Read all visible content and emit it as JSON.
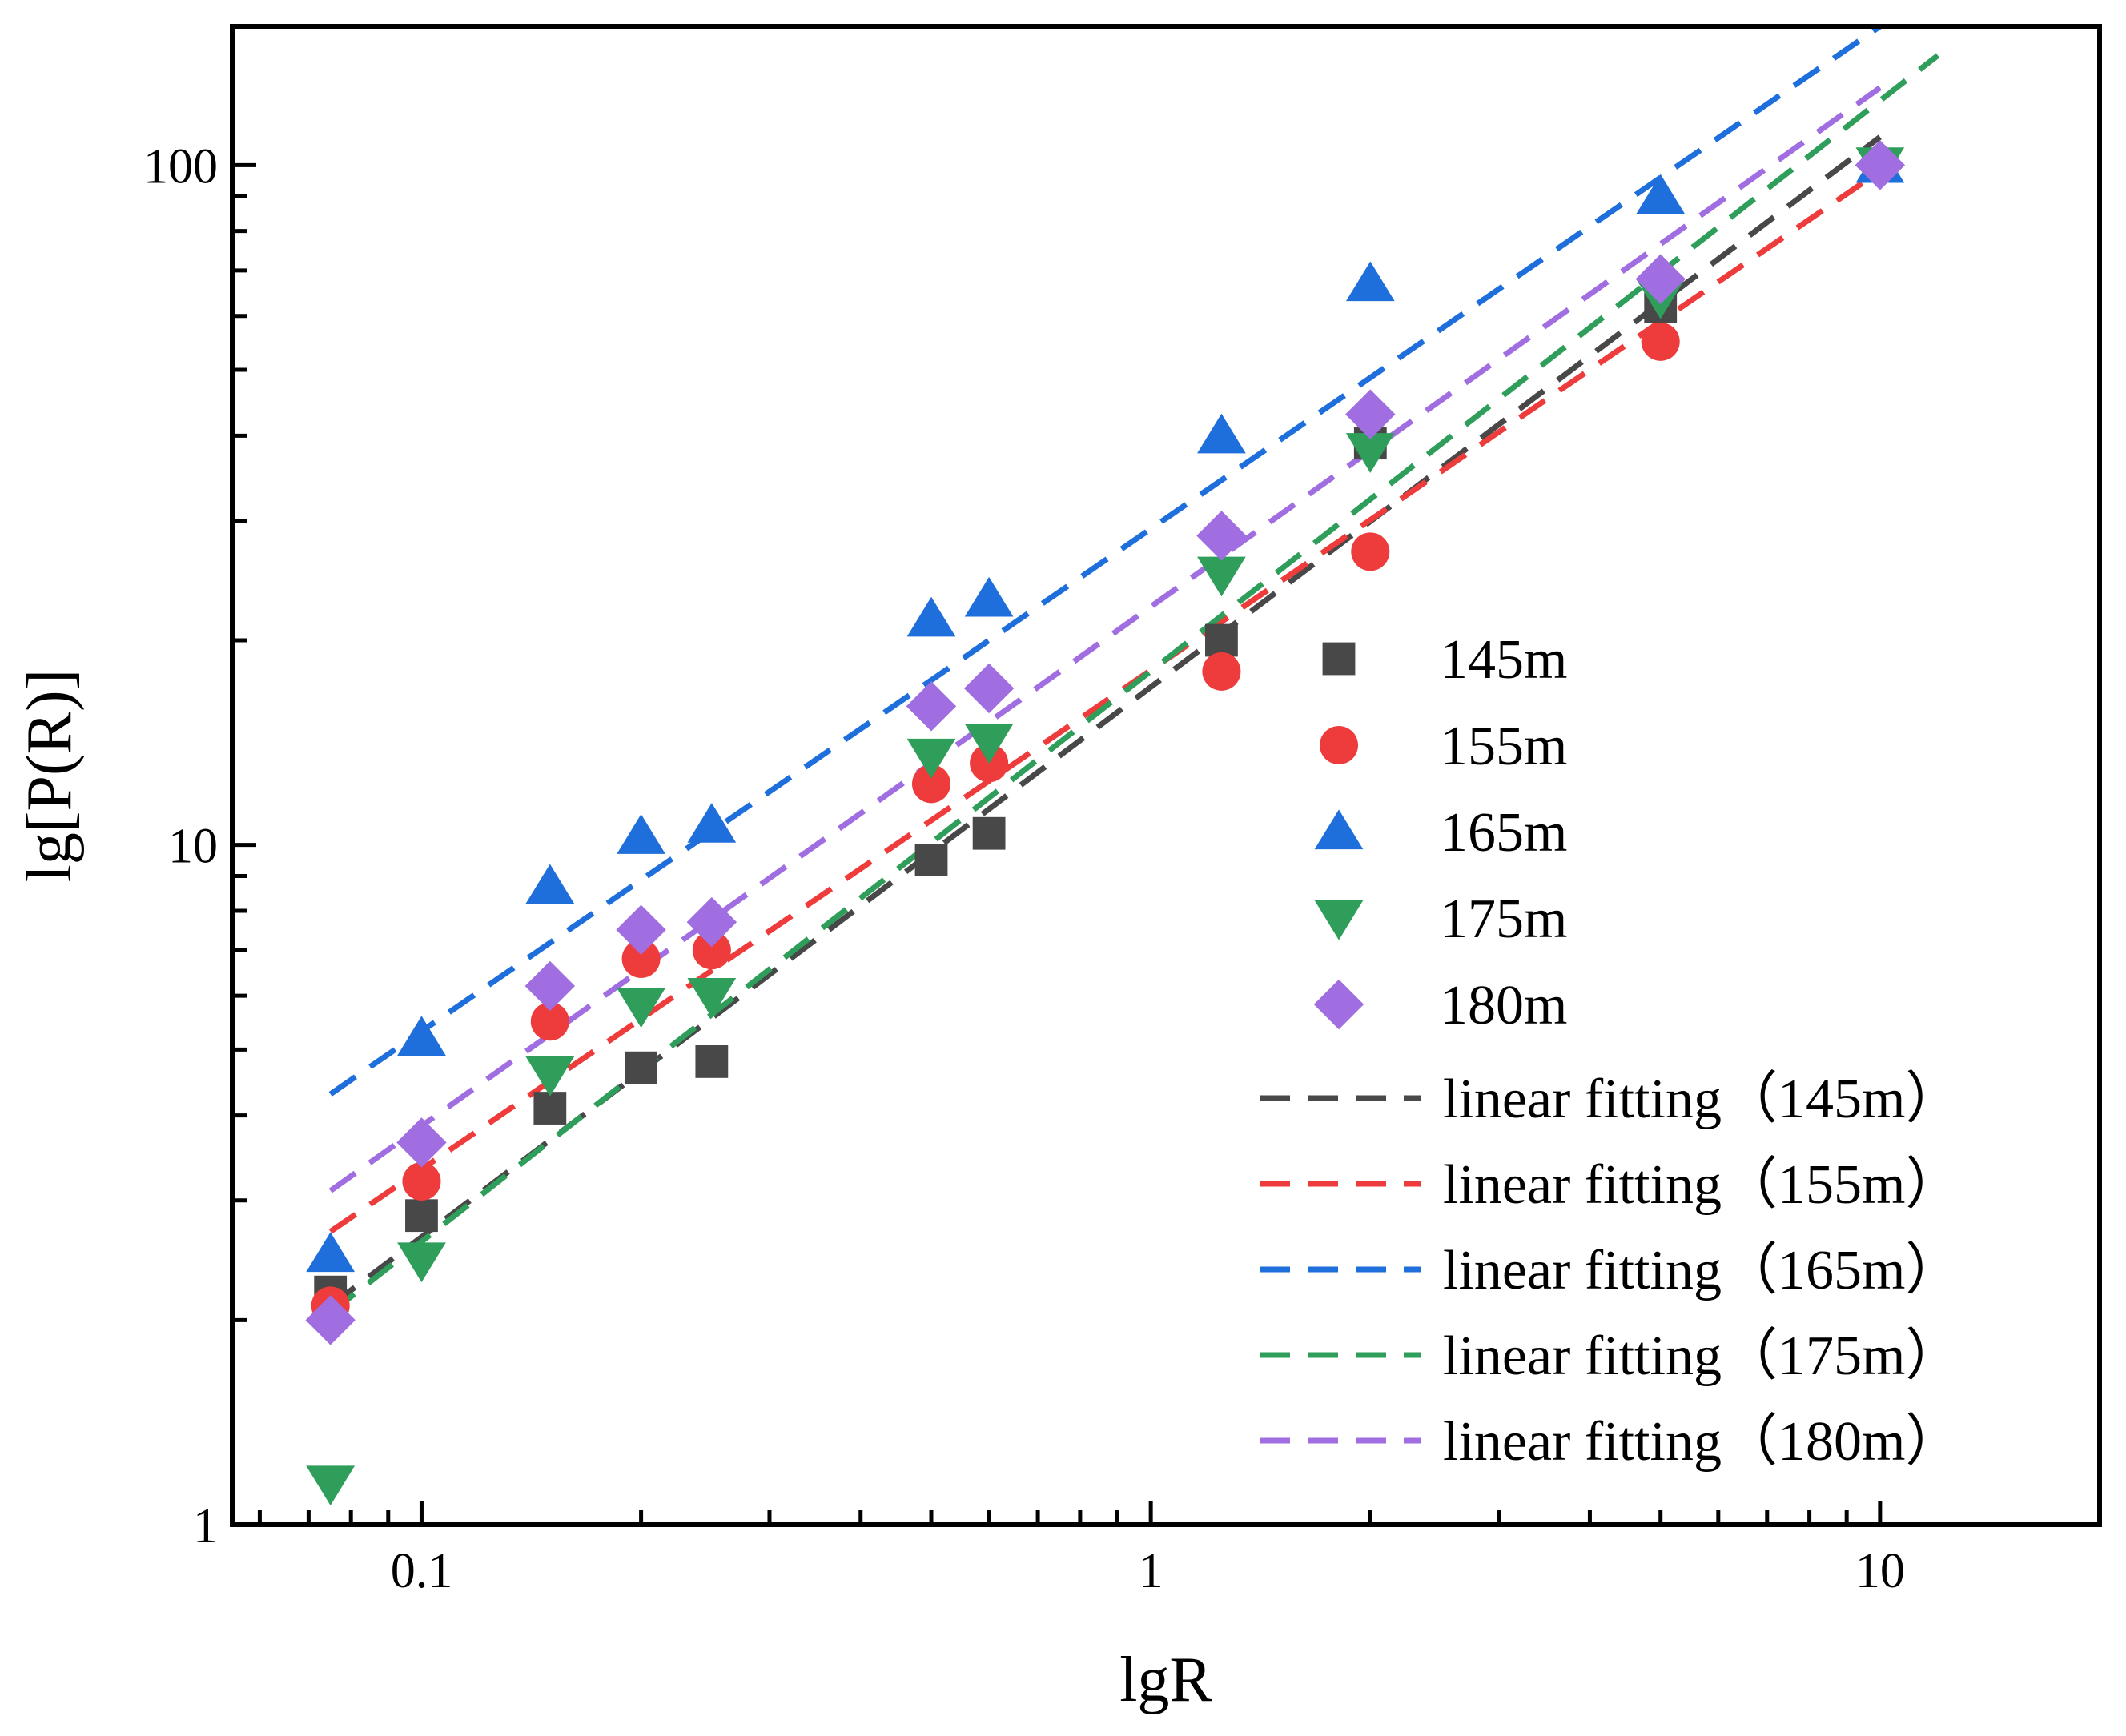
{
  "chart_data": {
    "type": "scatter",
    "title": "",
    "xlabel": "lgR",
    "ylabel": "lg[P(R)]",
    "xscale": "log",
    "yscale": "log",
    "xlim": [
      0.055,
      20
    ],
    "ylim": [
      1,
      160
    ],
    "x_ticks": [
      0.1,
      1,
      10
    ],
    "x_tick_labels": [
      "0.1",
      "1",
      "10"
    ],
    "y_ticks": [
      1,
      10,
      100
    ],
    "y_tick_labels": [
      "1",
      "10",
      "100"
    ],
    "grid": false,
    "legend_position": "lower-right",
    "series": [
      {
        "name": "145m",
        "marker": "square",
        "color": "#484848",
        "x": [
          0.075,
          0.1,
          0.15,
          0.2,
          0.25,
          0.5,
          0.6,
          1.25,
          2,
          5,
          10
        ],
        "y": [
          2.2,
          2.85,
          4.1,
          4.7,
          4.8,
          9.5,
          10.4,
          20,
          39,
          62,
          100
        ]
      },
      {
        "name": "155m",
        "marker": "circle",
        "color": "#ee3b3b",
        "x": [
          0.075,
          0.1,
          0.15,
          0.2,
          0.25,
          0.5,
          0.6,
          1.25,
          2,
          5,
          10
        ],
        "y": [
          2.1,
          3.2,
          5.5,
          6.8,
          7.0,
          12.3,
          13.2,
          18,
          27,
          55,
          100
        ]
      },
      {
        "name": "165m",
        "marker": "triangle-up",
        "color": "#1e6fdc",
        "x": [
          0.075,
          0.1,
          0.15,
          0.2,
          0.25,
          0.5,
          0.6,
          1.25,
          2,
          5,
          10
        ],
        "y": [
          2.5,
          5.2,
          8.7,
          10.3,
          10.7,
          21.5,
          23,
          40,
          67,
          90,
          100
        ]
      },
      {
        "name": "175m",
        "marker": "triangle-down",
        "color": "#2e9e5a",
        "x": [
          0.075,
          0.1,
          0.15,
          0.2,
          0.25,
          0.5,
          0.6,
          1.25,
          2,
          5,
          10
        ],
        "y": [
          1.15,
          2.45,
          4.6,
          5.8,
          6.0,
          13.5,
          14.2,
          25,
          38,
          64,
          100
        ]
      },
      {
        "name": "180m",
        "marker": "diamond",
        "color": "#a06ee0",
        "x": [
          0.075,
          0.1,
          0.15,
          0.2,
          0.25,
          0.5,
          0.6,
          1.25,
          2,
          5,
          10
        ],
        "y": [
          2.0,
          3.65,
          6.2,
          7.5,
          7.7,
          16,
          17,
          28.5,
          43,
          68,
          100
        ]
      }
    ],
    "fits": [
      {
        "name": "linear fitting（145m）",
        "color": "#484848",
        "x": [
          0.075,
          10
        ],
        "y": [
          2.1,
          110
        ]
      },
      {
        "name": "linear fitting（155m）",
        "color": "#ee3b3b",
        "x": [
          0.075,
          10
        ],
        "y": [
          2.7,
          98
        ]
      },
      {
        "name": "linear fitting（165m）",
        "color": "#1e6fdc",
        "x": [
          0.075,
          10
        ],
        "y": [
          4.3,
          160
        ]
      },
      {
        "name": "linear fitting（175m）",
        "color": "#2e9e5a",
        "x": [
          0.075,
          12
        ],
        "y": [
          2.05,
          145
        ]
      },
      {
        "name": "linear fitting（180m）",
        "color": "#a06ee0",
        "x": [
          0.075,
          10
        ],
        "y": [
          3.1,
          130
        ]
      }
    ]
  }
}
